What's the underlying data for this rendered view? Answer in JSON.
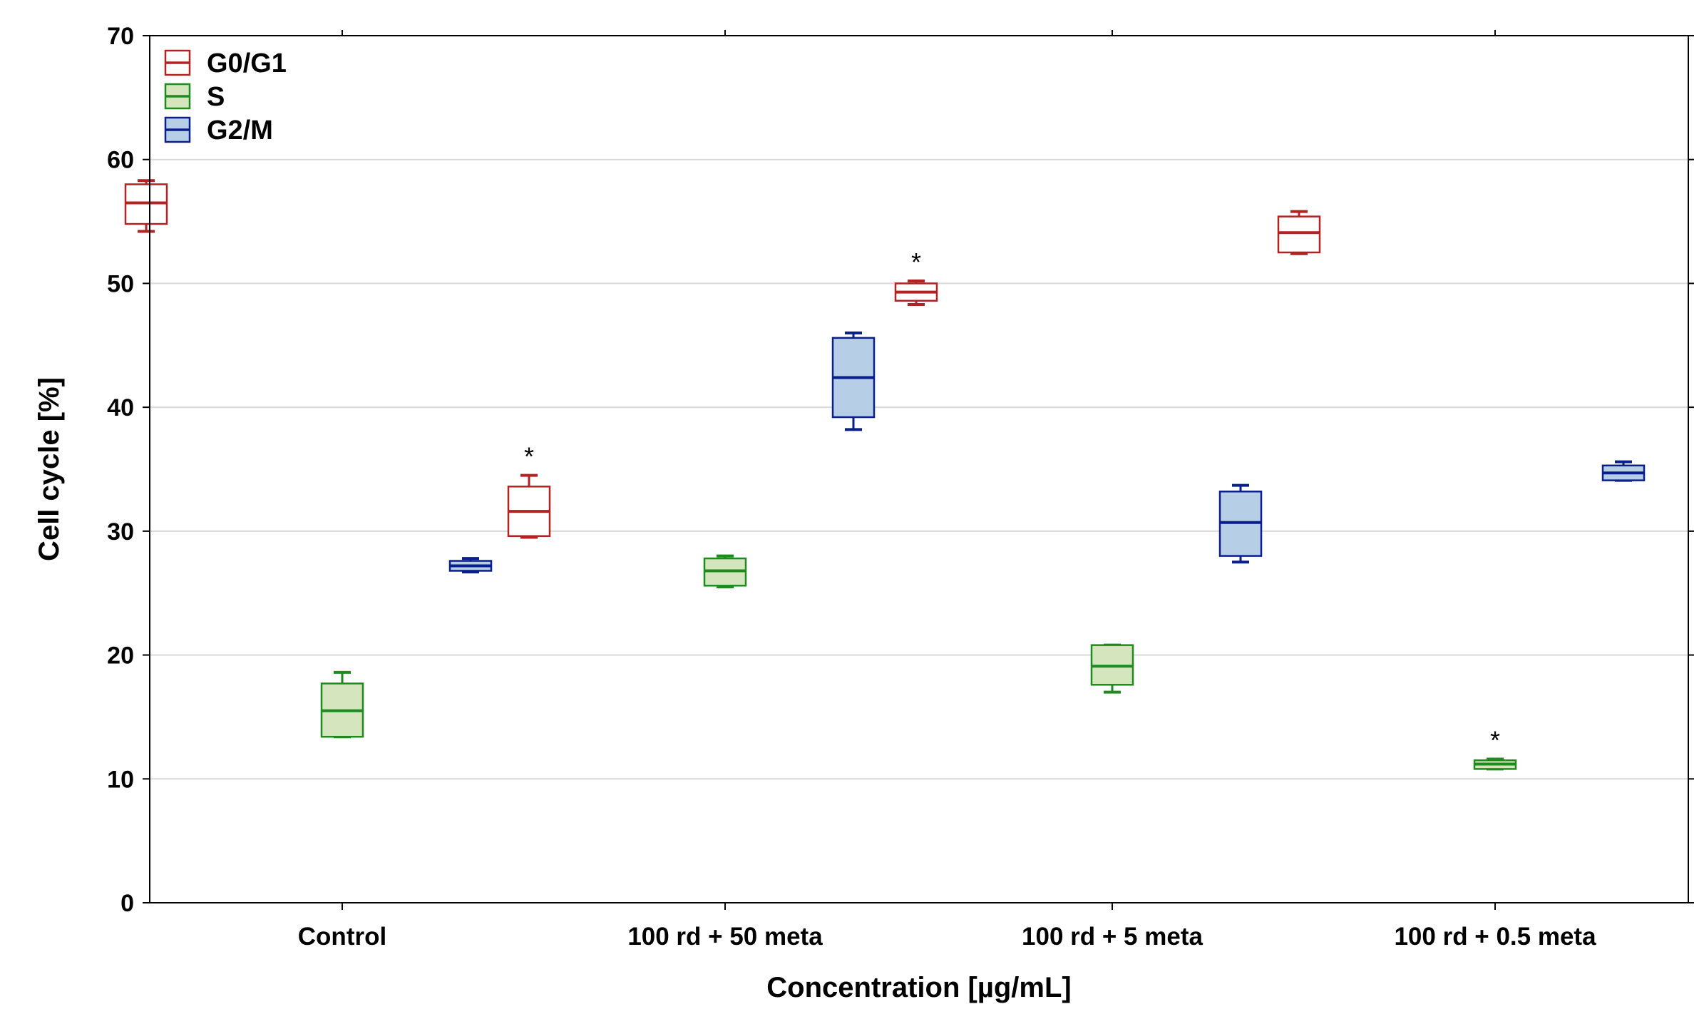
{
  "chart_data": {
    "type": "boxplot",
    "title": "",
    "xlabel": "Concentration [µg/mL]",
    "ylabel": "Cell cycle [%]",
    "ylim": [
      0,
      70
    ],
    "yticks": [
      0,
      10,
      20,
      30,
      40,
      50,
      60,
      70
    ],
    "grid": true,
    "legend_position": "top-left",
    "categories": [
      "Control",
      "100 rd + 50 meta",
      "100 rd + 5 meta",
      "100 rd + 0.5 meta"
    ],
    "significance_marker": "*",
    "series": [
      {
        "name": "G0/G1",
        "stroke": "#b22222",
        "fill": "#ffffff",
        "boxes": [
          {
            "min": 54.2,
            "q1": 54.8,
            "median": 56.5,
            "q3": 58.0,
            "max": 58.3,
            "significant": false
          },
          {
            "min": 29.5,
            "q1": 29.6,
            "median": 31.6,
            "q3": 33.6,
            "max": 34.5,
            "significant": true
          },
          {
            "min": 48.3,
            "q1": 48.6,
            "median": 49.3,
            "q3": 50.0,
            "max": 50.2,
            "significant": true
          },
          {
            "min": 52.4,
            "q1": 52.5,
            "median": 54.1,
            "q3": 55.4,
            "max": 55.8,
            "significant": false
          }
        ]
      },
      {
        "name": "S",
        "stroke": "#1f8b1f",
        "fill": "#d5e6bf",
        "boxes": [
          {
            "min": 13.4,
            "q1": 13.4,
            "median": 15.5,
            "q3": 17.7,
            "max": 18.6,
            "significant": false
          },
          {
            "min": 25.5,
            "q1": 25.6,
            "median": 26.8,
            "q3": 27.8,
            "max": 28.0,
            "significant": false
          },
          {
            "min": 17.0,
            "q1": 17.6,
            "median": 19.1,
            "q3": 20.8,
            "max": 20.8,
            "significant": false
          },
          {
            "min": 10.8,
            "q1": 10.8,
            "median": 11.2,
            "q3": 11.5,
            "max": 11.6,
            "significant": true
          }
        ]
      },
      {
        "name": "G2/M",
        "stroke": "#0a1e8c",
        "fill": "#b7cfe6",
        "boxes": [
          {
            "min": 26.7,
            "q1": 26.8,
            "median": 27.2,
            "q3": 27.6,
            "max": 27.8,
            "significant": false
          },
          {
            "min": 38.2,
            "q1": 39.2,
            "median": 42.4,
            "q3": 45.6,
            "max": 46.0,
            "significant": false
          },
          {
            "min": 27.5,
            "q1": 28.0,
            "median": 30.7,
            "q3": 33.2,
            "max": 33.7,
            "significant": false
          },
          {
            "min": 34.1,
            "q1": 34.1,
            "median": 34.7,
            "q3": 35.3,
            "max": 35.6,
            "significant": false
          }
        ]
      }
    ]
  }
}
